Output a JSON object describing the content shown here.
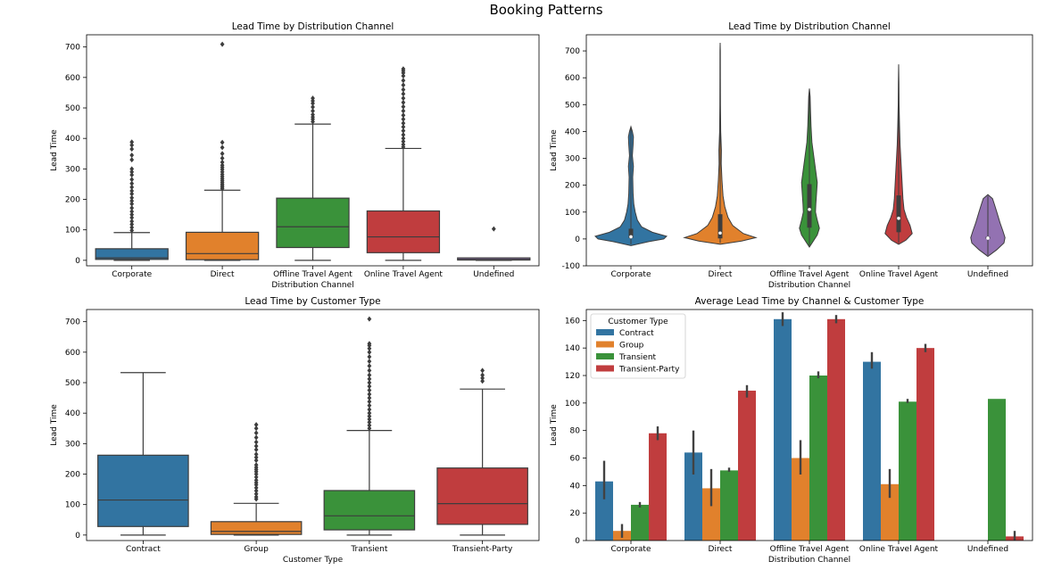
{
  "suptitle": "Booking Patterns",
  "colors": {
    "blue": "#3274a1",
    "orange": "#e1812c",
    "green": "#3a923a",
    "red": "#c03d3e",
    "purple": "#9372b2"
  },
  "chart_data": [
    {
      "type": "box",
      "title": "Lead Time by Distribution Channel",
      "xlabel": "Distribution Channel",
      "ylabel": "Lead Time",
      "ylim": [
        -18,
        740
      ],
      "yticks": [
        0,
        100,
        200,
        300,
        400,
        500,
        600,
        700
      ],
      "categories": [
        "Corporate",
        "Direct",
        "Offline Travel Agent",
        "Online Travel Agent",
        "Undefined"
      ],
      "colors": [
        "#3274a1",
        "#e1812c",
        "#3a923a",
        "#c03d3e",
        "#9372b2"
      ],
      "boxes": [
        {
          "min": 0,
          "q1": 3,
          "median": 8,
          "q3": 38,
          "max": 91,
          "outliers": [
            98,
            108,
            118,
            128,
            140,
            150,
            160,
            172,
            185,
            195,
            205,
            218,
            228,
            240,
            252,
            265,
            280,
            290,
            300,
            330,
            345,
            365,
            378,
            388
          ]
        },
        {
          "min": 0,
          "q1": 2,
          "median": 22,
          "q3": 92,
          "max": 230,
          "outliers": [
            235,
            240,
            245,
            250,
            256,
            262,
            268,
            275,
            282,
            290,
            298,
            305,
            312,
            322,
            335,
            350,
            370,
            387,
            709
          ]
        },
        {
          "min": 0,
          "q1": 42,
          "median": 110,
          "q3": 204,
          "max": 447,
          "outliers": [
            455,
            463,
            470,
            478,
            490,
            503,
            515,
            523,
            532
          ]
        },
        {
          "min": 0,
          "q1": 25,
          "median": 77,
          "q3": 162,
          "max": 367,
          "outliers": [
            372,
            380,
            390,
            400,
            412,
            425,
            438,
            450,
            463,
            476,
            490,
            504,
            518,
            532,
            546,
            560,
            575,
            590,
            605,
            615,
            622,
            628
          ]
        },
        {
          "min": 0,
          "q1": 1,
          "median": 3,
          "q3": 8,
          "max": 8,
          "outliers": [
            103
          ]
        }
      ]
    },
    {
      "type": "violin",
      "title": "Lead Time by Distribution Channel",
      "xlabel": "Distribution Channel",
      "ylabel": "Lead Time",
      "ylim": [
        -100,
        760
      ],
      "yticks": [
        -100,
        0,
        100,
        200,
        300,
        400,
        500,
        600,
        700
      ],
      "categories": [
        "Corporate",
        "Direct",
        "Offline Travel Agent",
        "Online Travel Agent",
        "Undefined"
      ],
      "colors": [
        "#3274a1",
        "#e1812c",
        "#3a923a",
        "#c03d3e",
        "#9372b2"
      ],
      "violins": [
        {
          "profile": [
            [
              -25,
              0
            ],
            [
              -10,
              0.5
            ],
            [
              0,
              0.92
            ],
            [
              10,
              1.0
            ],
            [
              25,
              0.6
            ],
            [
              45,
              0.3
            ],
            [
              70,
              0.18
            ],
            [
              100,
              0.12
            ],
            [
              130,
              0.08
            ],
            [
              170,
              0.06
            ],
            [
              230,
              0.05
            ],
            [
              270,
              0.07
            ],
            [
              310,
              0.04
            ],
            [
              350,
              0.06
            ],
            [
              380,
              0.07
            ],
            [
              400,
              0.04
            ],
            [
              418,
              0
            ]
          ],
          "q1": 3,
          "median": 8,
          "q3": 38
        },
        {
          "profile": [
            [
              -20,
              0
            ],
            [
              -8,
              0.6
            ],
            [
              5,
              1.0
            ],
            [
              20,
              0.65
            ],
            [
              50,
              0.35
            ],
            [
              80,
              0.22
            ],
            [
              120,
              0.13
            ],
            [
              160,
              0.08
            ],
            [
              220,
              0.05
            ],
            [
              280,
              0.03
            ],
            [
              330,
              0.035
            ],
            [
              400,
              0.015
            ],
            [
              500,
              0.008
            ],
            [
              600,
              0.006
            ],
            [
              700,
              0.005
            ],
            [
              730,
              0
            ]
          ],
          "q1": 2,
          "median": 22,
          "q3": 92
        },
        {
          "profile": [
            [
              -30,
              0
            ],
            [
              -10,
              0.1
            ],
            [
              15,
              0.22
            ],
            [
              40,
              0.28
            ],
            [
              70,
              0.22
            ],
            [
              100,
              0.17
            ],
            [
              130,
              0.18
            ],
            [
              170,
              0.2
            ],
            [
              210,
              0.22
            ],
            [
              260,
              0.17
            ],
            [
              310,
              0.12
            ],
            [
              360,
              0.07
            ],
            [
              420,
              0.045
            ],
            [
              480,
              0.03
            ],
            [
              530,
              0.02
            ],
            [
              560,
              0
            ]
          ],
          "q1": 42,
          "median": 110,
          "q3": 204
        },
        {
          "profile": [
            [
              -20,
              0
            ],
            [
              -5,
              0.2
            ],
            [
              20,
              0.38
            ],
            [
              50,
              0.32
            ],
            [
              80,
              0.22
            ],
            [
              110,
              0.15
            ],
            [
              150,
              0.12
            ],
            [
              200,
              0.1
            ],
            [
              250,
              0.08
            ],
            [
              300,
              0.06
            ],
            [
              350,
              0.04
            ],
            [
              420,
              0.025
            ],
            [
              500,
              0.012
            ],
            [
              580,
              0.008
            ],
            [
              650,
              0
            ]
          ],
          "q1": 25,
          "median": 77,
          "q3": 162
        },
        {
          "profile": [
            [
              -65,
              0
            ],
            [
              -40,
              0.25
            ],
            [
              -15,
              0.45
            ],
            [
              5,
              0.48
            ],
            [
              30,
              0.42
            ],
            [
              60,
              0.34
            ],
            [
              100,
              0.25
            ],
            [
              130,
              0.18
            ],
            [
              150,
              0.13
            ],
            [
              165,
              0
            ]
          ],
          "q1": 1,
          "median": 3,
          "q3": 8
        }
      ]
    },
    {
      "type": "box",
      "title": "Lead Time by Customer Type",
      "xlabel": "Customer Type",
      "ylabel": "Lead Time",
      "ylim": [
        -18,
        740
      ],
      "yticks": [
        0,
        100,
        200,
        300,
        400,
        500,
        600,
        700
      ],
      "categories": [
        "Contract",
        "Group",
        "Transient",
        "Transient-Party"
      ],
      "colors": [
        "#3274a1",
        "#e1812c",
        "#3a923a",
        "#c03d3e"
      ],
      "boxes": [
        {
          "min": 0,
          "q1": 28,
          "median": 115,
          "q3": 262,
          "max": 533,
          "outliers": []
        },
        {
          "min": 0,
          "q1": 2,
          "median": 12,
          "q3": 44,
          "max": 104,
          "outliers": [
            118,
            125,
            135,
            145,
            155,
            165,
            172,
            180,
            190,
            200,
            208,
            215,
            222,
            230,
            245,
            255,
            265,
            280,
            292,
            305,
            320,
            335,
            350,
            362
          ]
        },
        {
          "min": 0,
          "q1": 17,
          "median": 63,
          "q3": 146,
          "max": 343,
          "outliers": [
            350,
            360,
            370,
            380,
            390,
            400,
            412,
            425,
            438,
            450,
            462,
            475,
            488,
            500,
            512,
            525,
            540,
            555,
            570,
            585,
            600,
            612,
            622,
            628,
            709
          ]
        },
        {
          "min": 0,
          "q1": 35,
          "median": 103,
          "q3": 220,
          "max": 479,
          "outliers": [
            505,
            515,
            525,
            540
          ]
        }
      ]
    },
    {
      "type": "bar",
      "title": "Average Lead Time by Channel & Customer Type",
      "xlabel": "Distribution Channel",
      "ylabel": "Lead Time",
      "ylim": [
        0,
        168
      ],
      "yticks": [
        0,
        20,
        40,
        60,
        80,
        100,
        120,
        140,
        160
      ],
      "categories": [
        "Corporate",
        "Direct",
        "Offline Travel Agent",
        "Online Travel Agent",
        "Undefined"
      ],
      "legend": {
        "title": "Customer Type",
        "location": "upper left"
      },
      "series": [
        {
          "name": "Contract",
          "color": "#3274a1",
          "values": [
            43,
            64,
            161,
            130,
            null
          ],
          "err": [
            [
              30,
              58
            ],
            [
              48,
              80
            ],
            [
              156,
              166
            ],
            [
              125,
              137
            ],
            null
          ]
        },
        {
          "name": "Group",
          "color": "#e1812c",
          "values": [
            7,
            38,
            60,
            41,
            null
          ],
          "err": [
            [
              2,
              12
            ],
            [
              25,
              52
            ],
            [
              48,
              73
            ],
            [
              31,
              52
            ],
            null
          ]
        },
        {
          "name": "Transient",
          "color": "#3a923a",
          "values": [
            26,
            51,
            120,
            101,
            103
          ],
          "err": [
            [
              24,
              28
            ],
            [
              50,
              53
            ],
            [
              118,
              123
            ],
            [
              100,
              103
            ],
            null
          ]
        },
        {
          "name": "Transient-Party",
          "color": "#c03d3e",
          "values": [
            78,
            109,
            161,
            140,
            3
          ],
          "err": [
            [
              73,
              83
            ],
            [
              104,
              113
            ],
            [
              158,
              164
            ],
            [
              137,
              143
            ],
            [
              0,
              7
            ]
          ]
        }
      ]
    }
  ]
}
